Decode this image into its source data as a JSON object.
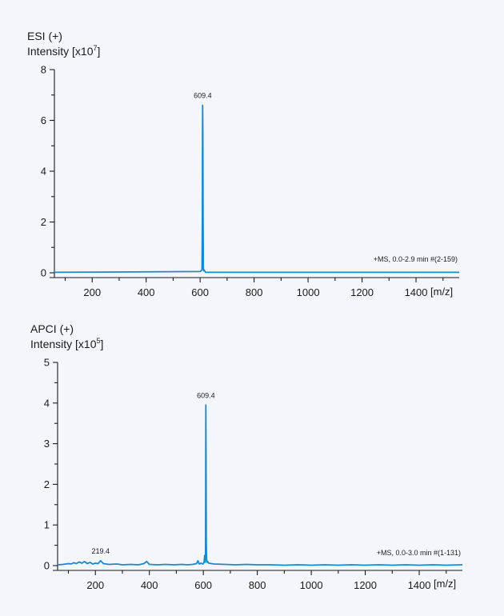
{
  "colors": {
    "background": "#f3f7fb",
    "trace": "#1f86c8",
    "axis": "#1a1a1a"
  },
  "chart_data": [
    {
      "type": "line",
      "title": "ESI (+)",
      "ylabel_text": "Intensity [x10",
      "ylabel_exp": "7",
      "ylabel_close": "]",
      "xlabel": "[m/z]",
      "ylim": [
        0,
        8
      ],
      "xlim": [
        60,
        1560
      ],
      "xticks": [
        200,
        400,
        600,
        800,
        1000,
        1200,
        1400
      ],
      "yticks": [
        0,
        2,
        4,
        6,
        8
      ],
      "annotation": "+MS, 0.0-2.9 min #(2-159)",
      "peaks": [
        {
          "label": "609.4",
          "x": 609.4,
          "y": 6.6
        }
      ],
      "series": [
        {
          "x": [
            60,
            300,
            600,
            606,
            607,
            608,
            608.6,
            609.4,
            610.2,
            611,
            612,
            613,
            614,
            620,
            900,
            1200,
            1560
          ],
          "y": [
            0.02,
            0.03,
            0.05,
            0.1,
            0.15,
            2.0,
            5.4,
            6.6,
            5.4,
            2.0,
            0.2,
            0.08,
            0.12,
            0.02,
            0.02,
            0.02,
            0.02
          ]
        }
      ]
    },
    {
      "type": "line",
      "title": "APCI (+)",
      "ylabel_text": "Intensity [x10",
      "ylabel_exp": "5",
      "ylabel_close": "]",
      "xlabel": "[m/z]",
      "ylim": [
        0,
        5
      ],
      "xlim": [
        60,
        1560
      ],
      "xticks": [
        200,
        400,
        600,
        800,
        1000,
        1200,
        1400
      ],
      "yticks": [
        0,
        1,
        2,
        3,
        4,
        5
      ],
      "annotation": "+MS, 0.0-3.0 min #(1-131)",
      "peaks": [
        {
          "label": "219.4",
          "x": 219.4,
          "y": 0.12
        },
        {
          "label": "609.4",
          "x": 609.4,
          "y": 3.95
        }
      ],
      "series": [
        {
          "x": [
            60,
            80,
            100,
            110,
            120,
            130,
            140,
            150,
            160,
            170,
            180,
            190,
            200,
            210,
            219.4,
            230,
            250,
            280,
            300,
            330,
            360,
            380,
            390,
            400,
            430,
            460,
            490,
            520,
            540,
            560,
            575,
            580,
            585,
            592,
            598,
            600,
            603,
            605,
            606,
            607,
            608,
            608.6,
            609.4,
            610.2,
            611,
            612,
            613,
            614,
            616,
            620,
            640,
            680,
            720,
            760,
            800,
            850,
            900,
            950,
            1000,
            1050,
            1100,
            1150,
            1200,
            1250,
            1300,
            1350,
            1400,
            1450,
            1500,
            1560
          ],
          "y": [
            0.02,
            0.03,
            0.05,
            0.04,
            0.07,
            0.05,
            0.09,
            0.06,
            0.1,
            0.05,
            0.08,
            0.04,
            0.06,
            0.05,
            0.12,
            0.05,
            0.03,
            0.04,
            0.02,
            0.03,
            0.02,
            0.05,
            0.1,
            0.03,
            0.02,
            0.03,
            0.02,
            0.03,
            0.02,
            0.03,
            0.05,
            0.12,
            0.04,
            0.06,
            0.04,
            0.05,
            0.1,
            0.25,
            0.15,
            0.08,
            0.3,
            2.0,
            3.95,
            2.5,
            0.5,
            0.2,
            0.12,
            0.08,
            0.1,
            0.06,
            0.04,
            0.03,
            0.02,
            0.03,
            0.02,
            0.02,
            0.01,
            0.02,
            0.01,
            0.02,
            0.01,
            0.02,
            0.01,
            0.02,
            0.01,
            0.02,
            0.01,
            0.02,
            0.01,
            0.02
          ]
        }
      ]
    }
  ]
}
